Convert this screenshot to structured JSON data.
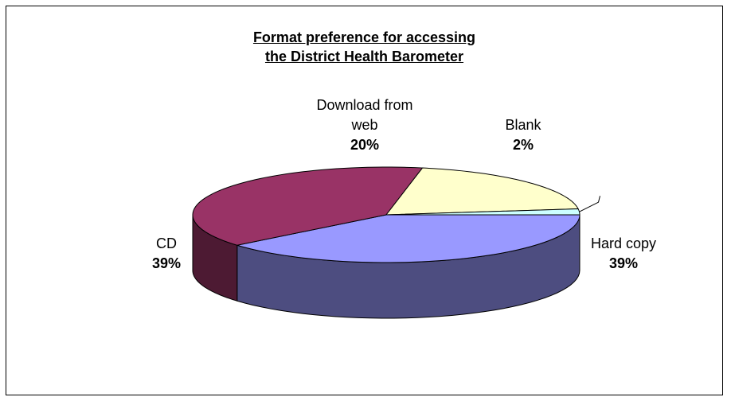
{
  "chart_data": {
    "type": "pie",
    "style": "3d",
    "title_lines": [
      "Format preference for accessing",
      "the District Health Barometer"
    ],
    "slices": [
      {
        "label": "Hard copy",
        "value": 39,
        "display": "39%",
        "color": "#9999ff",
        "side_color": "#4d4d80"
      },
      {
        "label": "CD",
        "value": 39,
        "display": "39%",
        "color": "#993366",
        "side_color": "#4d1a33"
      },
      {
        "label": "Download from web",
        "label_lines": [
          "Download from",
          "web"
        ],
        "value": 20,
        "display": "20%",
        "color": "#ffffcc",
        "side_color": "#808066"
      },
      {
        "label": "Blank",
        "value": 2,
        "display": "2%",
        "color": "#ccffff",
        "side_color": "#668080"
      }
    ],
    "legend": "none"
  }
}
